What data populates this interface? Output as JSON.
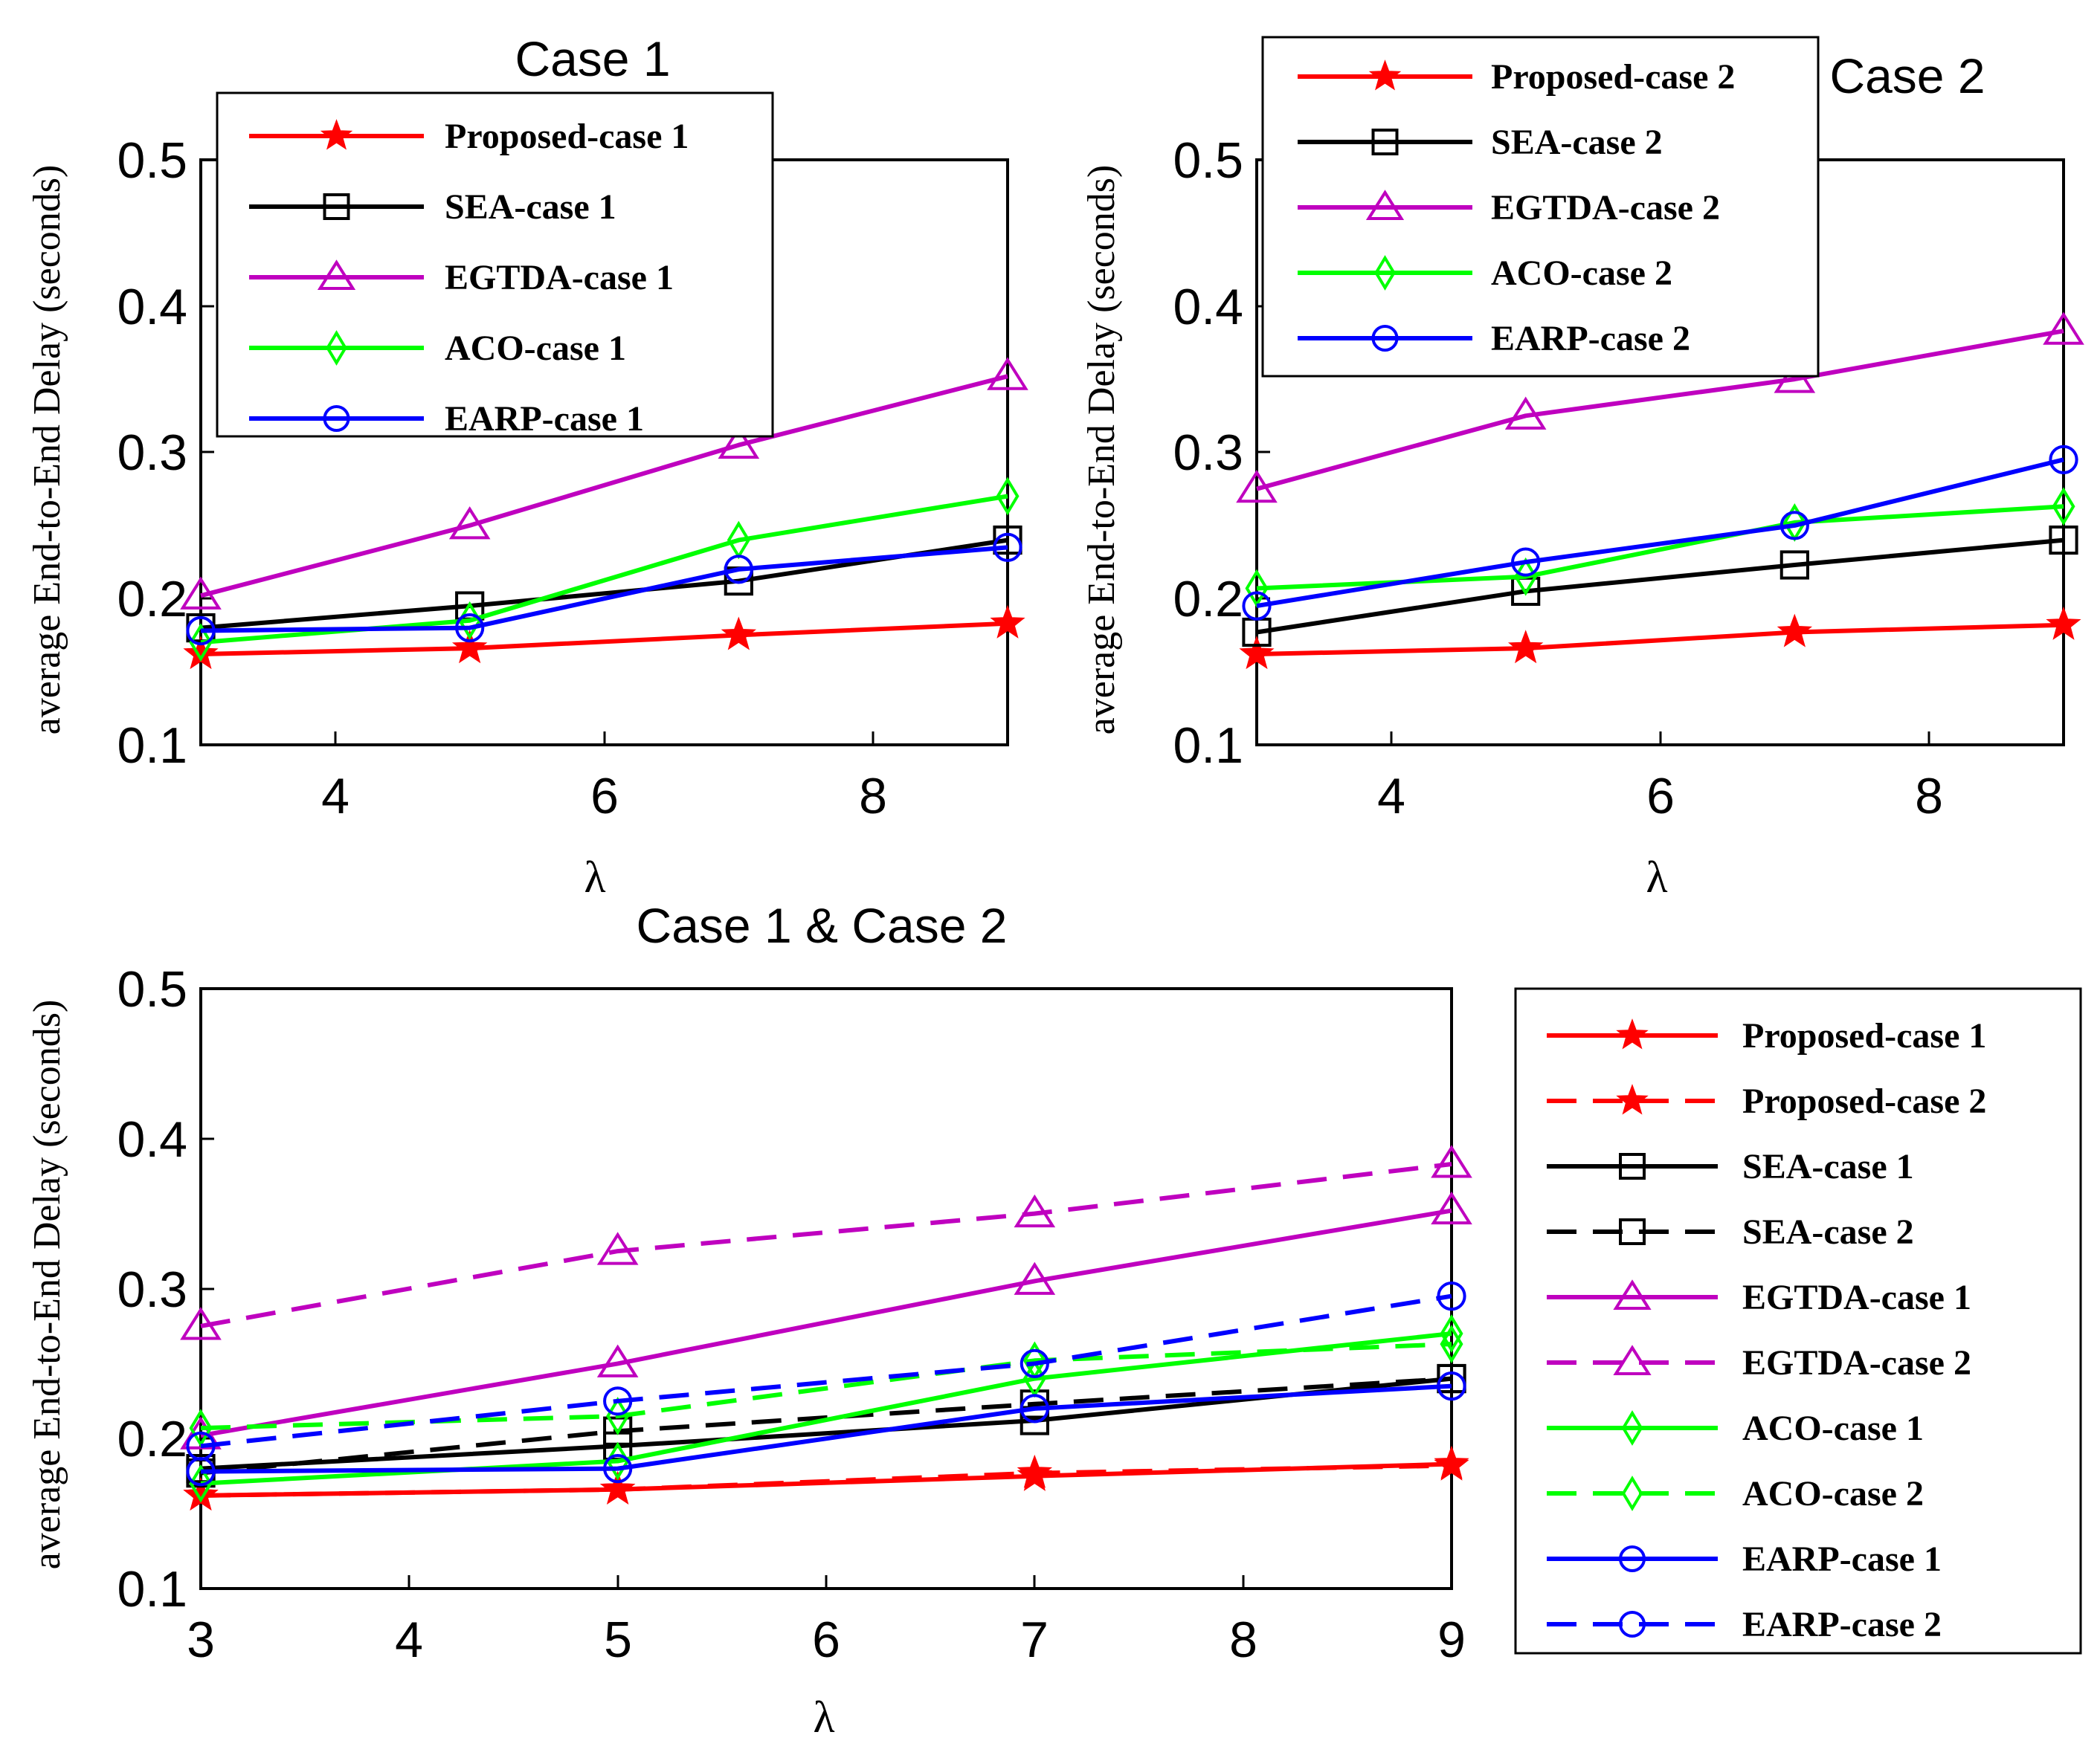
{
  "chart_data": [
    {
      "type": "line",
      "title": "Case 1",
      "xlabel": "λ",
      "ylabel": "average End-to-End Delay (seconds)",
      "xlim": [
        3,
        9
      ],
      "ylim": [
        0.1,
        0.5
      ],
      "xticks": [
        "4",
        "6",
        "8"
      ],
      "yticks": [
        "0.1",
        "0.2",
        "0.3",
        "0.4",
        "0.5"
      ],
      "x": [
        3,
        5,
        7,
        9
      ],
      "legend_position": "top",
      "series": [
        {
          "name": "Proposed-case 1",
          "color": "#ff0000",
          "marker": "star",
          "dash": "solid",
          "values": [
            0.162,
            0.166,
            0.175,
            0.183
          ]
        },
        {
          "name": "SEA-case 1",
          "color": "#000000",
          "marker": "square",
          "dash": "solid",
          "values": [
            0.18,
            0.195,
            0.212,
            0.24
          ]
        },
        {
          "name": "EGTDA-case 1",
          "color": "#bf00bf",
          "marker": "triangle",
          "dash": "solid",
          "values": [
            0.202,
            0.25,
            0.305,
            0.352
          ]
        },
        {
          "name": "ACO-case 1",
          "color": "#00ff00",
          "marker": "diamond",
          "dash": "solid",
          "values": [
            0.17,
            0.185,
            0.24,
            0.27
          ]
        },
        {
          "name": "EARP-case 1",
          "color": "#0000ff",
          "marker": "circle",
          "dash": "solid",
          "values": [
            0.178,
            0.18,
            0.22,
            0.235
          ]
        }
      ]
    },
    {
      "type": "line",
      "title": "Case 2",
      "xlabel": "λ",
      "ylabel": "average End-to-End Delay (seconds)",
      "xlim": [
        3,
        9
      ],
      "ylim": [
        0.1,
        0.5
      ],
      "xticks": [
        "4",
        "6",
        "8"
      ],
      "yticks": [
        "0.1",
        "0.2",
        "0.3",
        "0.4",
        "0.5"
      ],
      "x": [
        3,
        5,
        7,
        9
      ],
      "legend_position": "top-left",
      "series": [
        {
          "name": "Proposed-case 2",
          "color": "#ff0000",
          "marker": "star",
          "dash": "solid",
          "values": [
            0.162,
            0.166,
            0.177,
            0.182
          ]
        },
        {
          "name": "SEA-case 2",
          "color": "#000000",
          "marker": "square",
          "dash": "solid",
          "values": [
            0.177,
            0.205,
            0.223,
            0.24
          ]
        },
        {
          "name": "EGTDA-case 2",
          "color": "#bf00bf",
          "marker": "triangle",
          "dash": "solid",
          "values": [
            0.275,
            0.325,
            0.35,
            0.383
          ]
        },
        {
          "name": "ACO-case 2",
          "color": "#00ff00",
          "marker": "diamond",
          "dash": "solid",
          "values": [
            0.207,
            0.215,
            0.252,
            0.263
          ]
        },
        {
          "name": "EARP-case 2",
          "color": "#0000ff",
          "marker": "circle",
          "dash": "solid",
          "values": [
            0.195,
            0.225,
            0.25,
            0.295
          ]
        }
      ]
    },
    {
      "type": "line",
      "title": "Case 1 & Case 2",
      "xlabel": "λ",
      "ylabel": "average End-to-End Delay (seconds)",
      "xlim": [
        3,
        9
      ],
      "ylim": [
        0.1,
        0.5
      ],
      "xticks": [
        "3",
        "4",
        "5",
        "6",
        "7",
        "8",
        "9"
      ],
      "yticks": [
        "0.1",
        "0.2",
        "0.3",
        "0.4",
        "0.5"
      ],
      "x": [
        3,
        5,
        7,
        9
      ],
      "legend_position": "outside-right",
      "series": [
        {
          "name": "Proposed-case 1",
          "color": "#ff0000",
          "marker": "star",
          "dash": "solid",
          "values": [
            0.162,
            0.166,
            0.175,
            0.183
          ]
        },
        {
          "name": "Proposed-case 2",
          "color": "#ff0000",
          "marker": "star",
          "dash": "dashed",
          "values": [
            0.162,
            0.166,
            0.177,
            0.182
          ]
        },
        {
          "name": "SEA-case 1",
          "color": "#000000",
          "marker": "square",
          "dash": "solid",
          "values": [
            0.18,
            0.195,
            0.212,
            0.24
          ]
        },
        {
          "name": "SEA-case 2",
          "color": "#000000",
          "marker": "square",
          "dash": "dashed",
          "values": [
            0.177,
            0.205,
            0.223,
            0.24
          ]
        },
        {
          "name": "EGTDA-case 1",
          "color": "#bf00bf",
          "marker": "triangle",
          "dash": "solid",
          "values": [
            0.202,
            0.25,
            0.305,
            0.352
          ]
        },
        {
          "name": "EGTDA-case 2",
          "color": "#bf00bf",
          "marker": "triangle",
          "dash": "dashed",
          "values": [
            0.275,
            0.325,
            0.35,
            0.383
          ]
        },
        {
          "name": "ACO-case 1",
          "color": "#00ff00",
          "marker": "diamond",
          "dash": "solid",
          "values": [
            0.17,
            0.185,
            0.24,
            0.27
          ]
        },
        {
          "name": "ACO-case 2",
          "color": "#00ff00",
          "marker": "diamond",
          "dash": "dashed",
          "values": [
            0.207,
            0.215,
            0.252,
            0.263
          ]
        },
        {
          "name": "EARP-case 1",
          "color": "#0000ff",
          "marker": "circle",
          "dash": "solid",
          "values": [
            0.178,
            0.18,
            0.22,
            0.235
          ]
        },
        {
          "name": "EARP-case 2",
          "color": "#0000ff",
          "marker": "circle",
          "dash": "dashed",
          "values": [
            0.195,
            0.225,
            0.25,
            0.295
          ]
        }
      ]
    }
  ]
}
